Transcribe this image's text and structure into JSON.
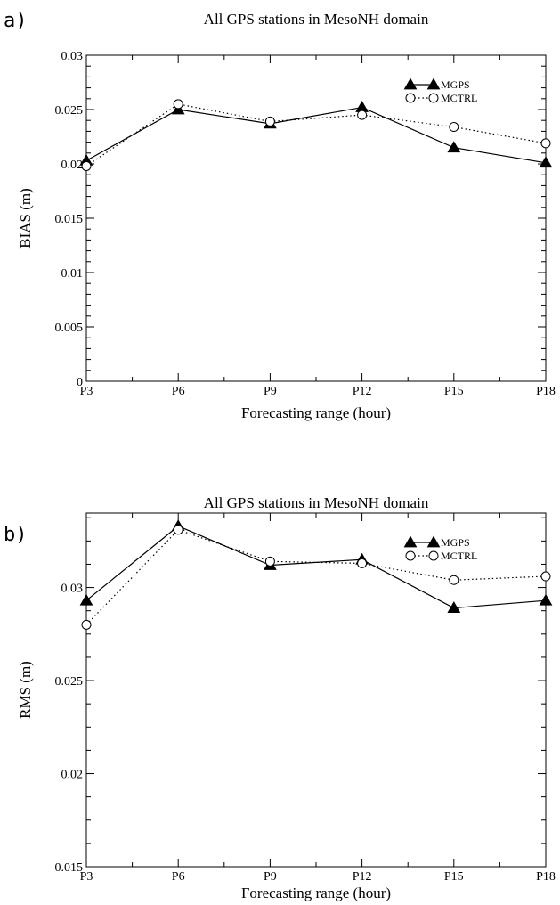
{
  "chart_data": [
    {
      "type": "line",
      "panel_label": "a)",
      "title": "All GPS stations in MesoNH domain",
      "xlabel": "Forecasting range (hour)",
      "ylabel": "BIAS (m)",
      "categories": [
        "P3",
        "P6",
        "P9",
        "P12",
        "P15",
        "P18"
      ],
      "ylim": [
        0,
        0.03
      ],
      "yticks": [
        "0",
        "0.005",
        "0.01",
        "0.015",
        "0.02",
        "0.025",
        "0.03"
      ],
      "ytick_values": [
        0,
        0.005,
        0.01,
        0.015,
        0.02,
        0.025,
        0.03
      ],
      "grid": false,
      "legend_position": "top-right",
      "series": [
        {
          "name": "MGPS",
          "marker": "filled-triangle",
          "line": "solid",
          "values": [
            0.0203,
            0.025,
            0.0237,
            0.0252,
            0.0215,
            0.0201
          ]
        },
        {
          "name": "MCTRL",
          "marker": "open-circle",
          "line": "dotted",
          "values": [
            0.0198,
            0.0255,
            0.0239,
            0.0245,
            0.0234,
            0.0219
          ]
        }
      ]
    },
    {
      "type": "line",
      "panel_label": "b)",
      "title": "All GPS stations in MesoNH domain",
      "xlabel": "Forecasting range (hour)",
      "ylabel": "RMS (m)",
      "categories": [
        "P3",
        "P6",
        "P9",
        "P12",
        "P15",
        "P18"
      ],
      "ylim": [
        0.015,
        0.034
      ],
      "yticks": [
        "0.015",
        "0.02",
        "0.025",
        "0.03"
      ],
      "ytick_values": [
        0.015,
        0.02,
        0.025,
        0.03
      ],
      "grid": false,
      "legend_position": "top-right",
      "series": [
        {
          "name": "MGPS",
          "marker": "filled-triangle",
          "line": "solid",
          "values": [
            0.0293,
            0.0333,
            0.0312,
            0.0315,
            0.0289,
            0.0293
          ]
        },
        {
          "name": "MCTRL",
          "marker": "open-circle",
          "line": "dotted",
          "values": [
            0.028,
            0.0331,
            0.0314,
            0.0313,
            0.0304,
            0.0306
          ]
        }
      ]
    }
  ]
}
